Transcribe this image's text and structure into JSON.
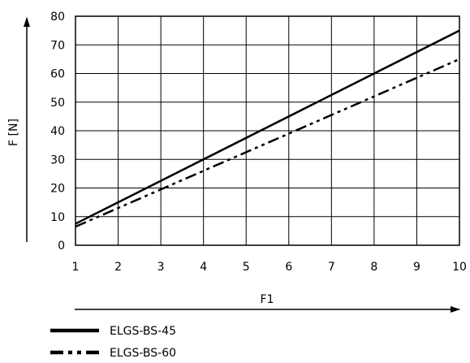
{
  "chart_data": {
    "type": "line",
    "xlabel": "F1",
    "ylabel": "F [N]",
    "xlim": [
      1,
      10
    ],
    "ylim": [
      0,
      80
    ],
    "xticks": [
      1,
      2,
      3,
      4,
      5,
      6,
      7,
      8,
      9,
      10
    ],
    "yticks": [
      0,
      10,
      20,
      30,
      40,
      50,
      60,
      70,
      80
    ],
    "grid": true,
    "legend_position": "bottom-left",
    "series": [
      {
        "name": "ELGS-BS-45",
        "style": "solid",
        "color": "#000000",
        "x": [
          1,
          10
        ],
        "y": [
          7.5,
          75
        ]
      },
      {
        "name": "ELGS-BS-60",
        "style": "dash-dot-dot",
        "color": "#000000",
        "x": [
          1,
          10
        ],
        "y": [
          6.5,
          65
        ]
      }
    ]
  }
}
